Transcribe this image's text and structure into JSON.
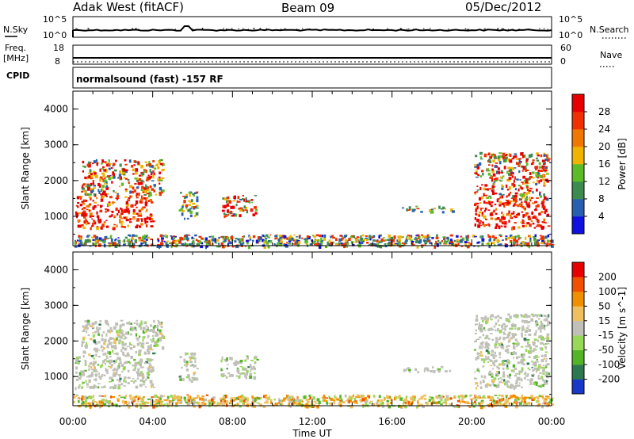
{
  "header": {
    "station": "Adak West (fitACF)",
    "beam": "Beam 09",
    "date": "05/Dec/2012"
  },
  "noise_panel": {
    "left_label": "N.Sky",
    "right_label": "N.Search",
    "left_ticks": [
      "10^5",
      "10^0"
    ],
    "right_ticks": [
      "10^5",
      "10^0"
    ]
  },
  "freq_panel": {
    "left_label_1": "Freq.",
    "left_label_2": "[MHz]",
    "right_label": "Nave",
    "left_ticks": [
      "18",
      "8"
    ],
    "right_ticks": [
      "60",
      "0"
    ]
  },
  "cpid_panel": {
    "label": "CPID",
    "text": "normalsound (fast) -157 RF"
  },
  "chart_data": [
    {
      "type": "heatmap",
      "title": "Power",
      "ylabel": "Slant Range [km]",
      "ylim": [
        180,
        4500
      ],
      "yticks": [
        "1000",
        "2000",
        "3000",
        "4000"
      ],
      "xlim": [
        "00:00",
        "24:00"
      ],
      "colorbar": {
        "label": "Power [dB]",
        "ticks": [
          "4",
          "8",
          "12",
          "16",
          "20",
          "24",
          "28"
        ],
        "range": [
          0,
          32
        ],
        "colors": [
          "#1010e0",
          "#2860b0",
          "#3c8c50",
          "#5cbc28",
          "#f0b400",
          "#f07800",
          "#f03000",
          "#e80000"
        ]
      },
      "regions": [
        {
          "t0": 0.1,
          "t1": 4.0,
          "r0": 700,
          "r1": 1600,
          "level": "high"
        },
        {
          "t0": 0.4,
          "t1": 4.5,
          "r0": 1600,
          "r1": 2600,
          "level": "mid"
        },
        {
          "t0": 5.3,
          "t1": 6.2,
          "r0": 900,
          "r1": 1700,
          "level": "low"
        },
        {
          "t0": 7.4,
          "t1": 9.2,
          "r0": 1000,
          "r1": 1600,
          "level": "mid"
        },
        {
          "t0": 16.5,
          "t1": 19.0,
          "r0": 1150,
          "r1": 1300,
          "level": "low"
        },
        {
          "t0": 20.1,
          "t1": 23.8,
          "r0": 700,
          "r1": 1500,
          "level": "high"
        },
        {
          "t0": 20.1,
          "t1": 23.8,
          "r0": 1500,
          "r1": 2800,
          "level": "mid"
        },
        {
          "t0": 0.0,
          "t1": 24.0,
          "r0": 180,
          "r1": 500,
          "level": "ground"
        }
      ]
    },
    {
      "type": "heatmap",
      "title": "Velocity",
      "ylabel": "Slant Range [km]",
      "ylim": [
        180,
        4500
      ],
      "yticks": [
        "1000",
        "2000",
        "3000",
        "4000"
      ],
      "xlabel": "Time UT",
      "xticks": [
        "00:00",
        "04:00",
        "08:00",
        "12:00",
        "16:00",
        "20:00",
        "00:00"
      ],
      "colorbar": {
        "label": "Velocity [m s^-1]",
        "ticks": [
          "200",
          "100",
          "50",
          "15",
          "-15",
          "-50",
          "-100",
          "-200"
        ],
        "colors": [
          "#1838c8",
          "#2c7850",
          "#54b428",
          "#98d858",
          "#c0c0b8",
          "#f0c060",
          "#f09000",
          "#f05000",
          "#e80000"
        ]
      },
      "regions": [
        {
          "t0": 0.1,
          "t1": 4.0,
          "r0": 700,
          "r1": 1600,
          "level": "grey"
        },
        {
          "t0": 0.4,
          "t1": 4.5,
          "r0": 1600,
          "r1": 2600,
          "level": "grey"
        },
        {
          "t0": 5.3,
          "t1": 6.2,
          "r0": 900,
          "r1": 1700,
          "level": "grey"
        },
        {
          "t0": 7.4,
          "t1": 9.2,
          "r0": 1000,
          "r1": 1600,
          "level": "grey"
        },
        {
          "t0": 16.5,
          "t1": 19.0,
          "r0": 1150,
          "r1": 1300,
          "level": "grey"
        },
        {
          "t0": 20.1,
          "t1": 23.8,
          "r0": 700,
          "r1": 2800,
          "level": "grey"
        },
        {
          "t0": 0.0,
          "t1": 24.0,
          "r0": 180,
          "r1": 500,
          "level": "ground"
        }
      ]
    }
  ]
}
